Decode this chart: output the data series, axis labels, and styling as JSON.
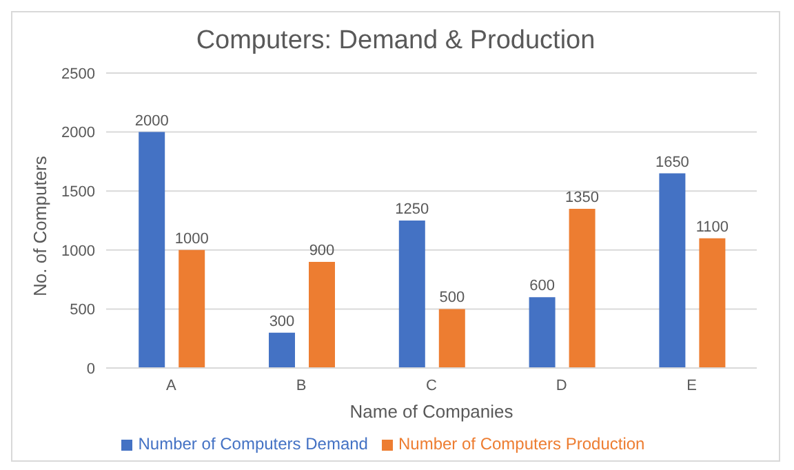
{
  "chart_data": {
    "type": "bar",
    "title": "Computers: Demand & Production",
    "xlabel": "Name of Companies",
    "ylabel": "No. of Computers",
    "categories": [
      "A",
      "B",
      "C",
      "D",
      "E"
    ],
    "series": [
      {
        "name": "Number of Computers Demand",
        "color": "#4472c4",
        "values": [
          2000,
          300,
          1250,
          600,
          1650
        ]
      },
      {
        "name": "Number of Computers Production",
        "color": "#ed7d31",
        "values": [
          1000,
          900,
          500,
          1350,
          1100
        ]
      }
    ],
    "ylim": [
      0,
      2500
    ],
    "yticks": [
      0,
      500,
      1000,
      1500,
      2000,
      2500
    ],
    "grid": "y",
    "legend": "bottom",
    "data_labels": true
  }
}
